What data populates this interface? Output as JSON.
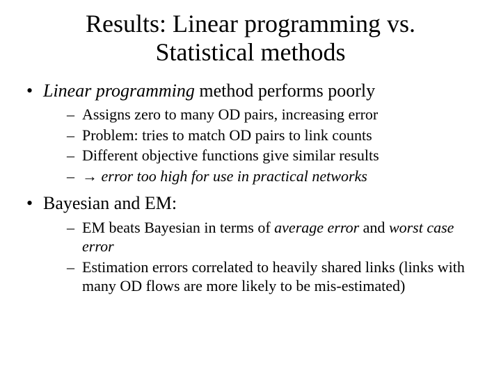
{
  "title": "Results: Linear programming vs. Statistical methods",
  "bullets": [
    {
      "prefix_italic": "Linear programming",
      "rest": " method performs poorly",
      "sub": [
        {
          "text": "Assigns zero to many OD pairs, increasing error"
        },
        {
          "text": "Problem: tries to match OD pairs to link counts"
        },
        {
          "text": "Different objective functions give similar results"
        },
        {
          "arrow": "→ ",
          "italic_text": "error too high for use in practical networks"
        }
      ]
    },
    {
      "text": "Bayesian and EM:",
      "sub": [
        {
          "pre": "EM beats Bayesian in terms of ",
          "i1": "average error",
          "mid": " and ",
          "i2": "worst case error"
        },
        {
          "text": "Estimation errors correlated to heavily shared links (links with many OD flows are more likely to be mis-estimated)"
        }
      ]
    }
  ]
}
